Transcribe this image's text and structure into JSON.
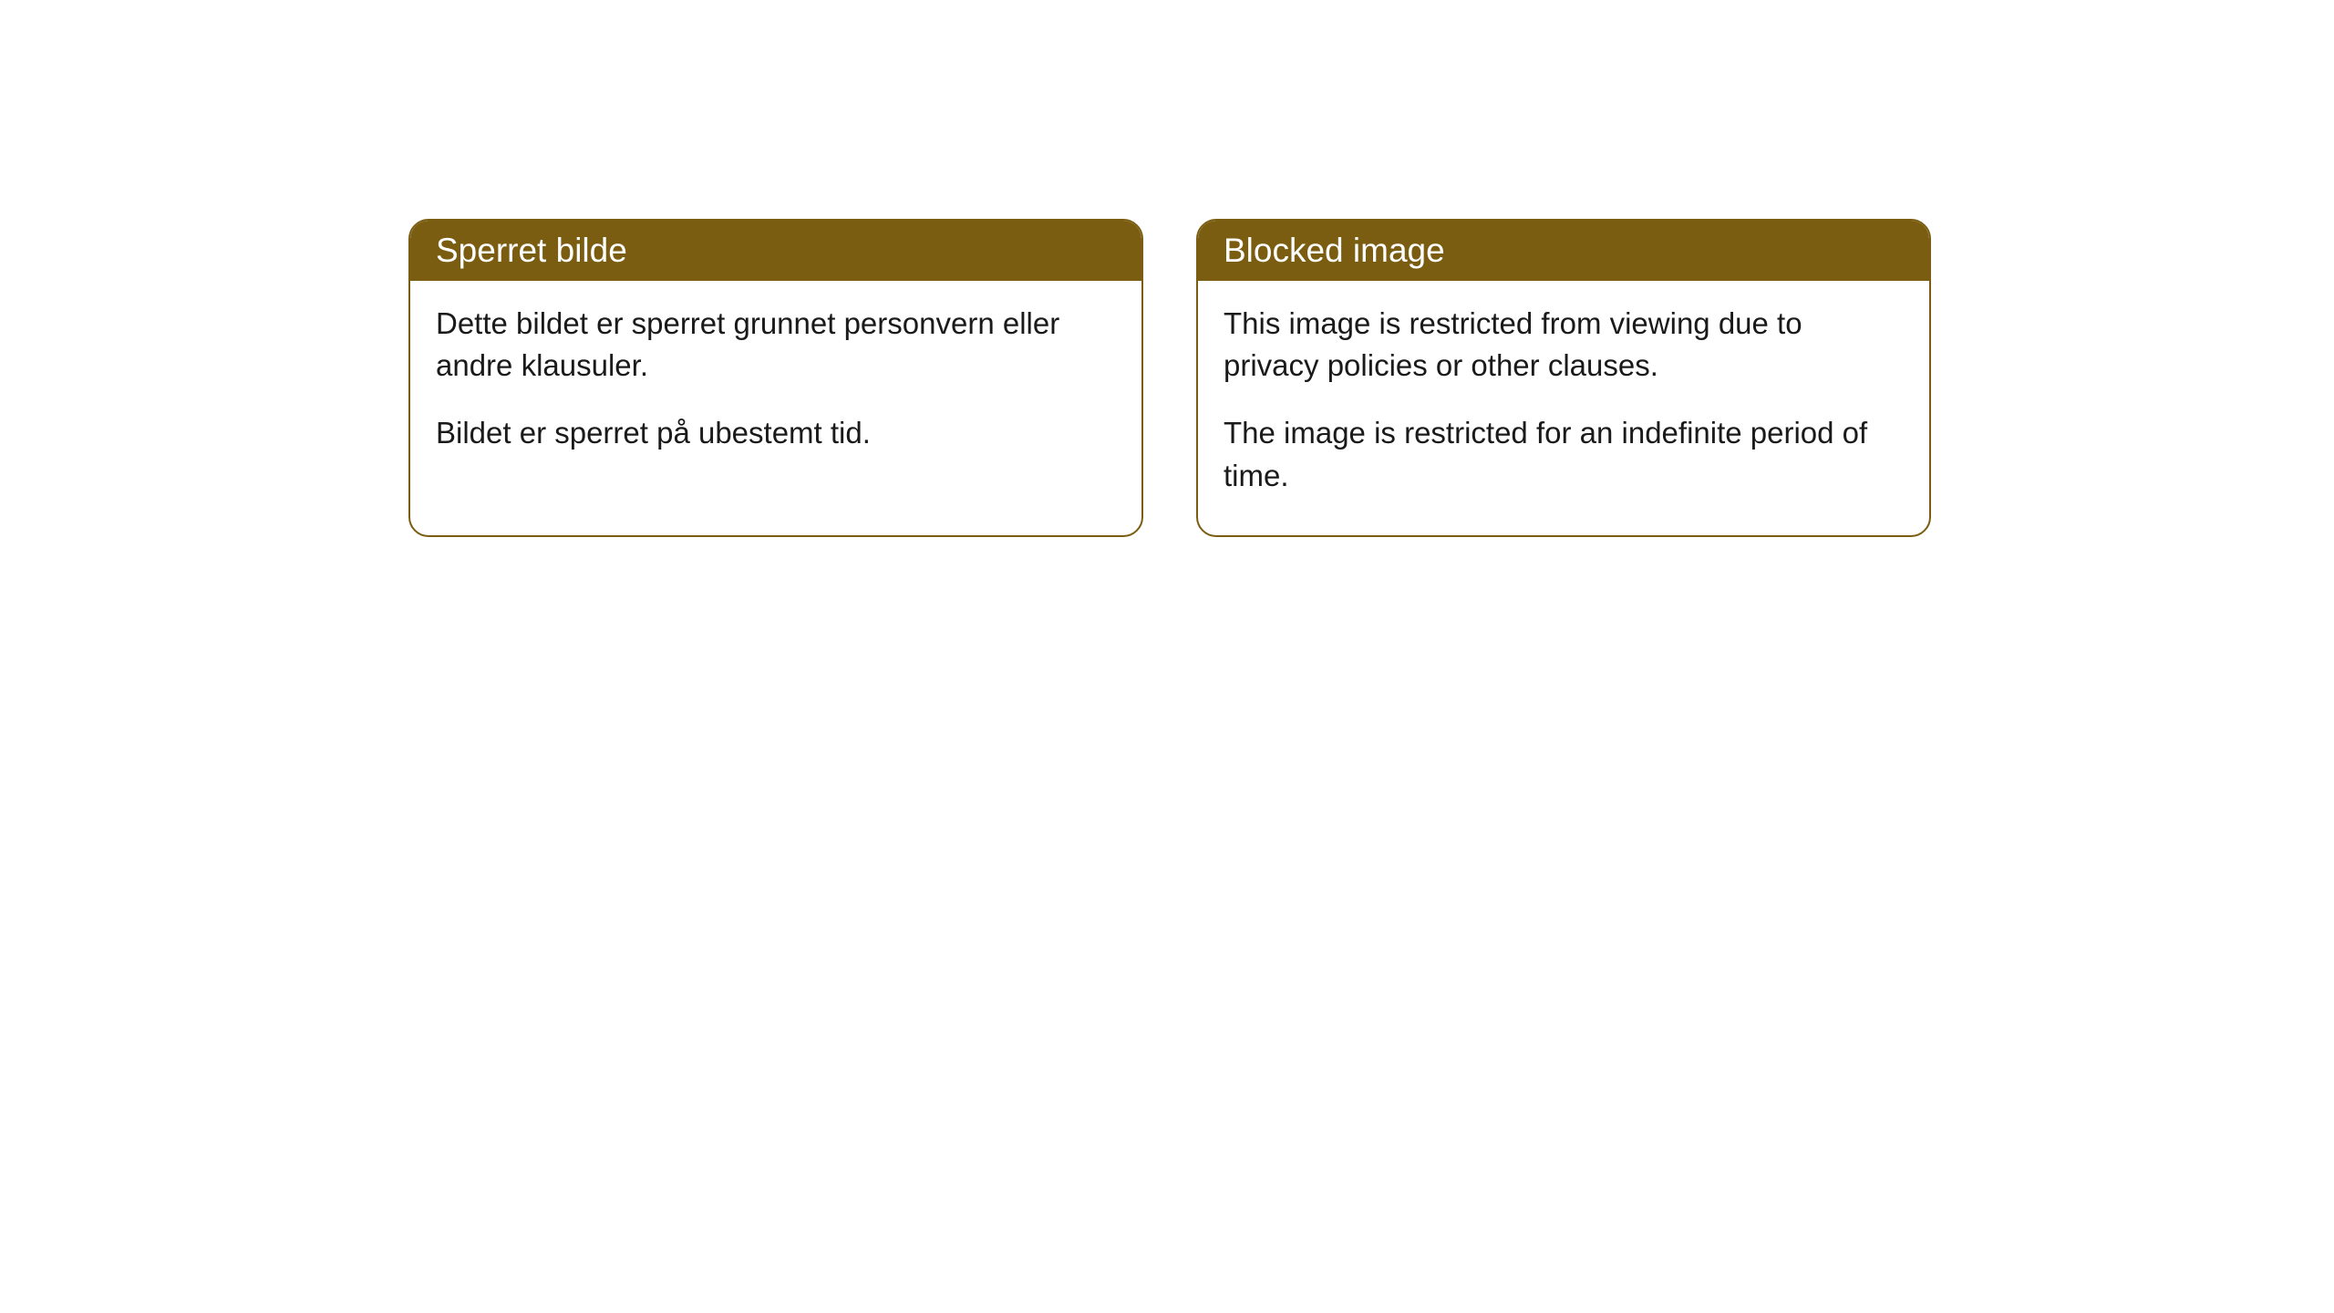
{
  "cards": [
    {
      "header": "Sperret bilde",
      "paragraph1": "Dette bildet er sperret grunnet personvern eller andre klausuler.",
      "paragraph2": "Bildet er sperret på ubestemt tid."
    },
    {
      "header": "Blocked image",
      "paragraph1": "This image is restricted from viewing due to privacy policies or other clauses.",
      "paragraph2": "The image is restricted for an indefinite period of time."
    }
  ],
  "styling": {
    "header_background": "#7b5d12",
    "header_text_color": "#ffffff",
    "border_color": "#7b5d12",
    "body_text_color": "#1a1a1a",
    "card_background": "#ffffff",
    "border_radius": 22,
    "header_fontsize": 37,
    "body_fontsize": 33
  }
}
